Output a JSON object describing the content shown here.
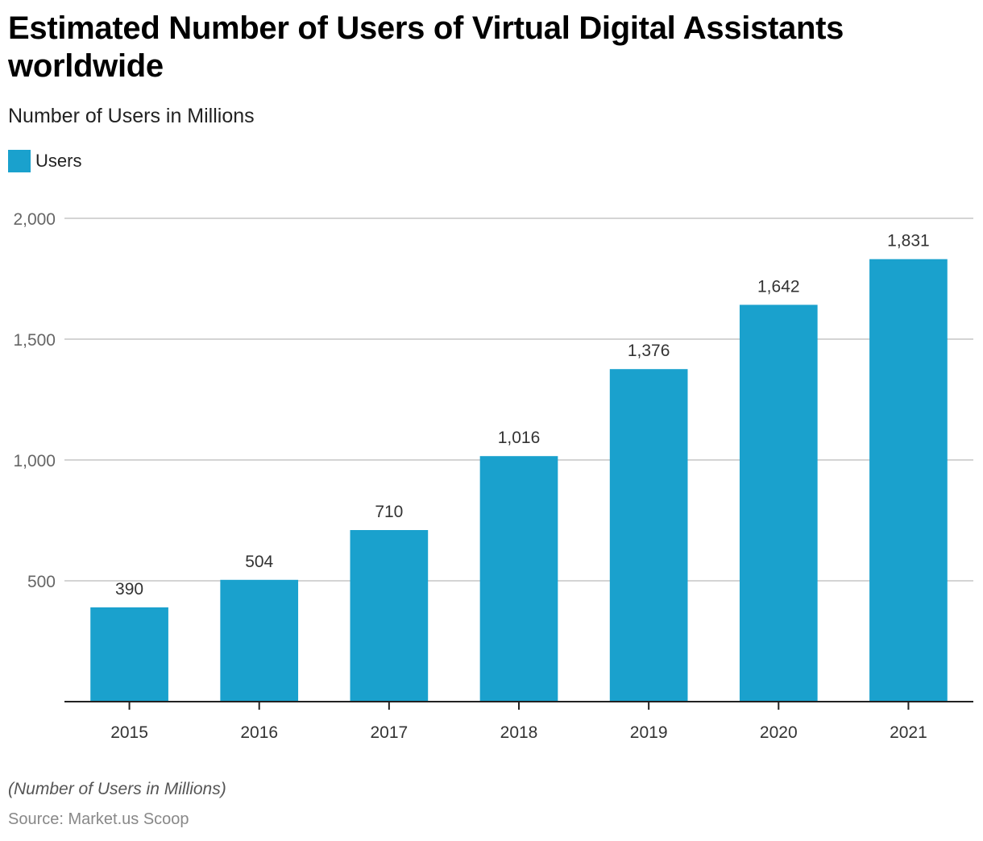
{
  "chart_data": {
    "type": "bar",
    "title": "Estimated Number of Users of Virtual Digital Assistants worldwide",
    "subtitle": "Number of Users in Millions",
    "xlabel": "",
    "ylabel": "",
    "categories": [
      "2015",
      "2016",
      "2017",
      "2018",
      "2019",
      "2020",
      "2021"
    ],
    "series": [
      {
        "name": "Users",
        "color": "#1aa1cd",
        "values": [
          390,
          504,
          710,
          1016,
          1376,
          1642,
          1831
        ]
      }
    ],
    "data_labels": [
      "390",
      "504",
      "710",
      "1,016",
      "1,376",
      "1,642",
      "1,831"
    ],
    "ylim": [
      0,
      2000
    ],
    "yticks": [
      500,
      1000,
      1500,
      2000
    ],
    "ytick_labels": [
      "500",
      "1,000",
      "1,500",
      "2,000"
    ],
    "grid": true,
    "legend": {
      "position": "top-left",
      "entries": [
        "Users"
      ]
    },
    "note": "(Number of Users in Millions)",
    "source": "Source: Market.us Scoop"
  }
}
